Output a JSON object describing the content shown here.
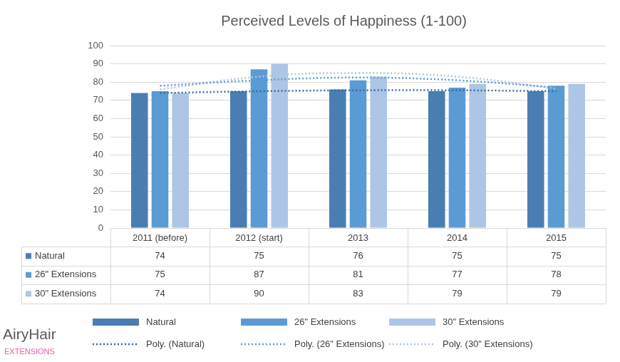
{
  "chart_data": {
    "type": "bar",
    "title": "Perceived Levels of Happiness (1-100)",
    "categories": [
      "2011 (before)",
      "2012 (start)",
      "2013",
      "2014",
      "2015"
    ],
    "series": [
      {
        "name": "Natural",
        "color": "#4a7eb3",
        "values": [
          74,
          75,
          76,
          75,
          75
        ]
      },
      {
        "name": "26\" Extensions",
        "color": "#5b9bd5",
        "values": [
          75,
          87,
          81,
          77,
          78
        ]
      },
      {
        "name": "30\" Extensions",
        "color": "#adc6e5",
        "values": [
          74,
          90,
          83,
          79,
          79
        ]
      },
      {
        "name": "Poly. (Natural)",
        "type": "line",
        "line_style": "dotted",
        "color": "#3468a0",
        "values": [
          74,
          75,
          75.5,
          75.5,
          75
        ]
      },
      {
        "name": "Poly. (26\" Extensions)",
        "type": "line",
        "line_style": "dotted",
        "color": "#5b9bd5",
        "values": [
          78,
          81,
          82.5,
          81,
          77
        ]
      },
      {
        "name": "Poly. (30\" Extensions)",
        "type": "line",
        "line_style": "dotted",
        "color": "#adc6e5",
        "values": [
          76,
          83,
          85,
          83,
          76.5
        ]
      }
    ],
    "ylim": [
      0,
      100
    ],
    "yticks": [
      0,
      10,
      20,
      30,
      40,
      50,
      60,
      70,
      80,
      90,
      100
    ],
    "grid": true,
    "legend": "bottom",
    "annotations": [
      "AiryHair",
      "EXTENSIONS"
    ]
  }
}
